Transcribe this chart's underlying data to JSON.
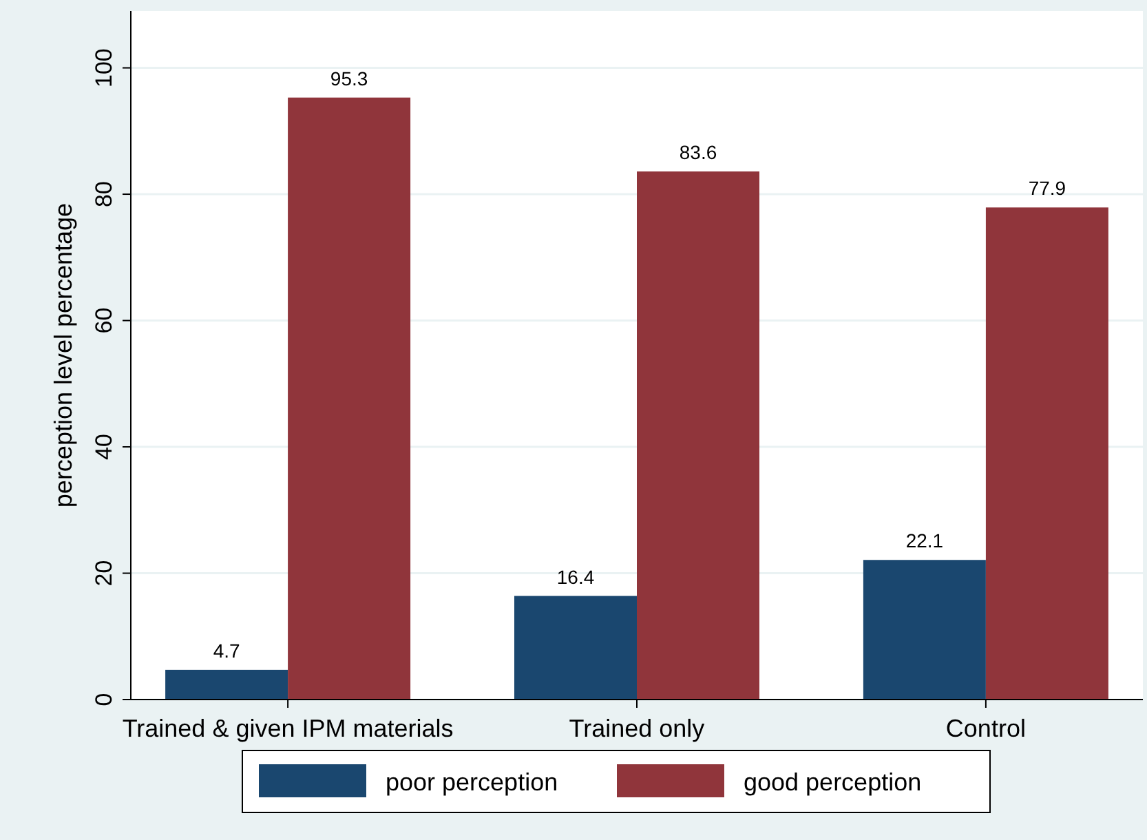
{
  "chart_data": {
    "type": "bar",
    "ylabel": "perception level percentage",
    "categories": [
      "Trained & given IPM materials",
      "Trained only",
      "Control"
    ],
    "series": [
      {
        "name": "poor perception",
        "color": "#1a476f",
        "values": [
          4.7,
          16.4,
          22.1
        ]
      },
      {
        "name": "good perception",
        "color": "#90353b",
        "values": [
          95.3,
          83.6,
          77.9
        ]
      }
    ],
    "ylim": [
      0,
      109
    ],
    "yticks": [
      0,
      20,
      40,
      60,
      80,
      100
    ],
    "grid": "y",
    "legend": "bottom",
    "data_labels": true
  }
}
